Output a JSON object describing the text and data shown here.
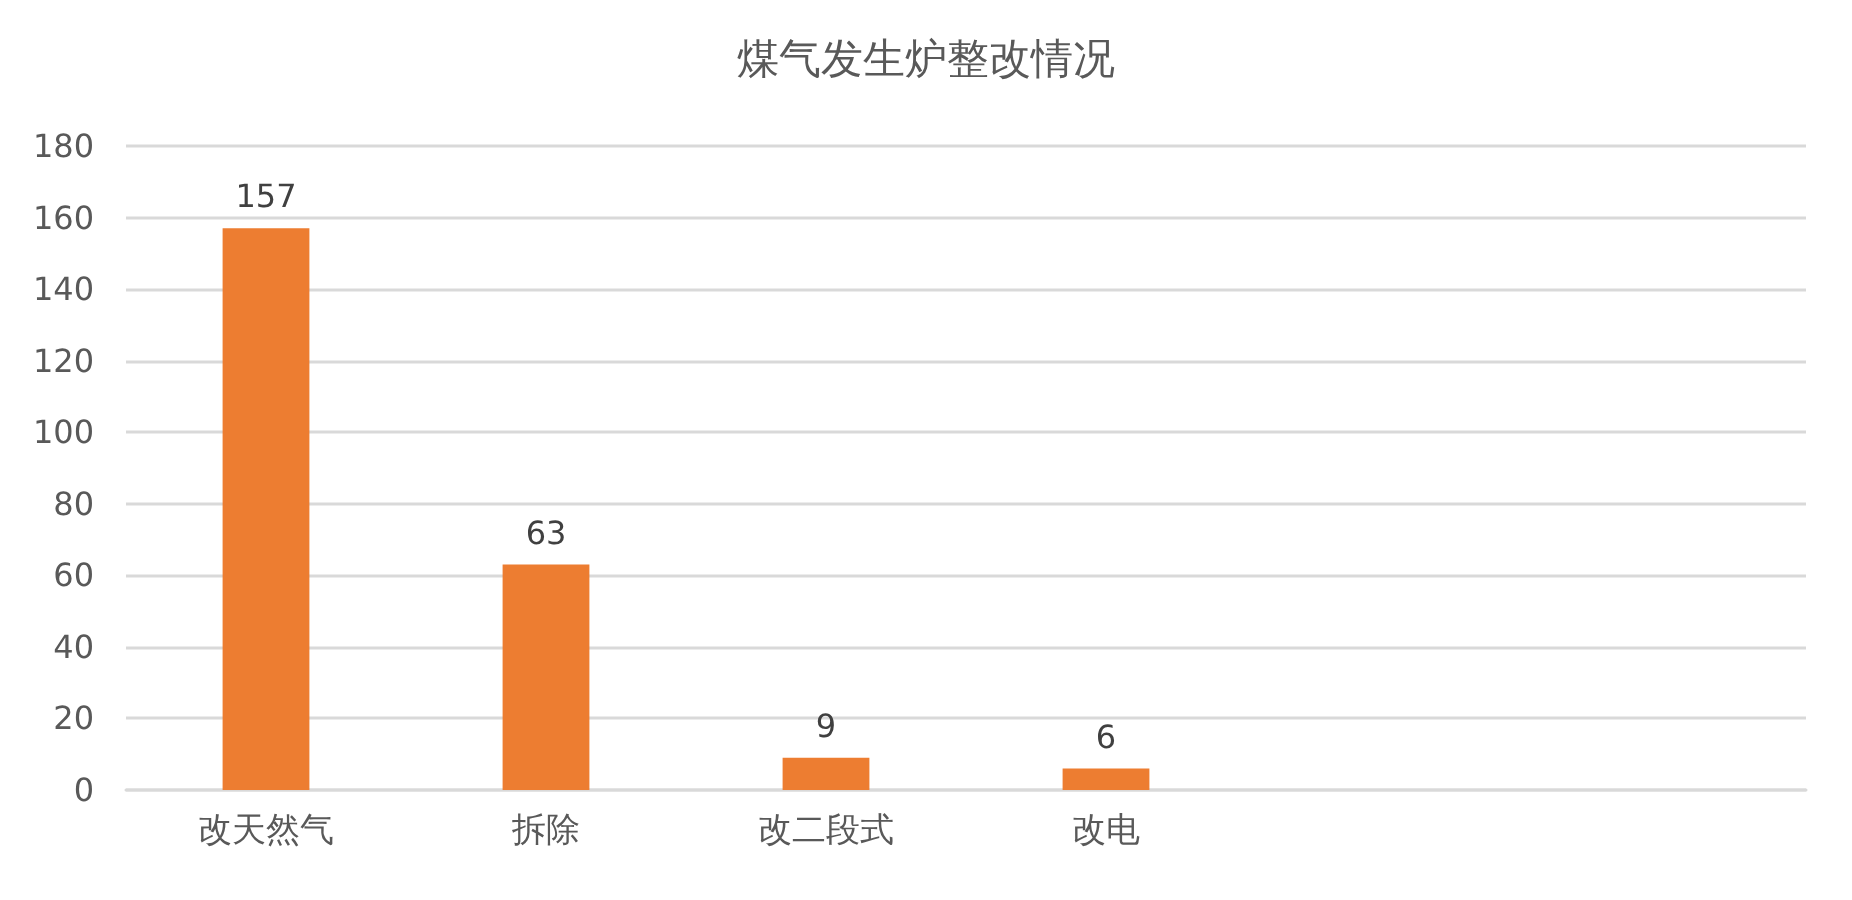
{
  "chart_data": {
    "type": "bar",
    "title": "煤气发生炉整改情况",
    "categories": [
      "改天然气",
      "拆除",
      "改二段式",
      "改电",
      null,
      null
    ],
    "values": [
      157,
      63,
      9,
      6,
      null,
      null
    ],
    "color": "#ed7d31",
    "ylim": [
      0,
      180
    ],
    "yticks": [
      0,
      20,
      40,
      60,
      80,
      100,
      120,
      140,
      160,
      180
    ],
    "grid": "y",
    "data_labels": true
  }
}
